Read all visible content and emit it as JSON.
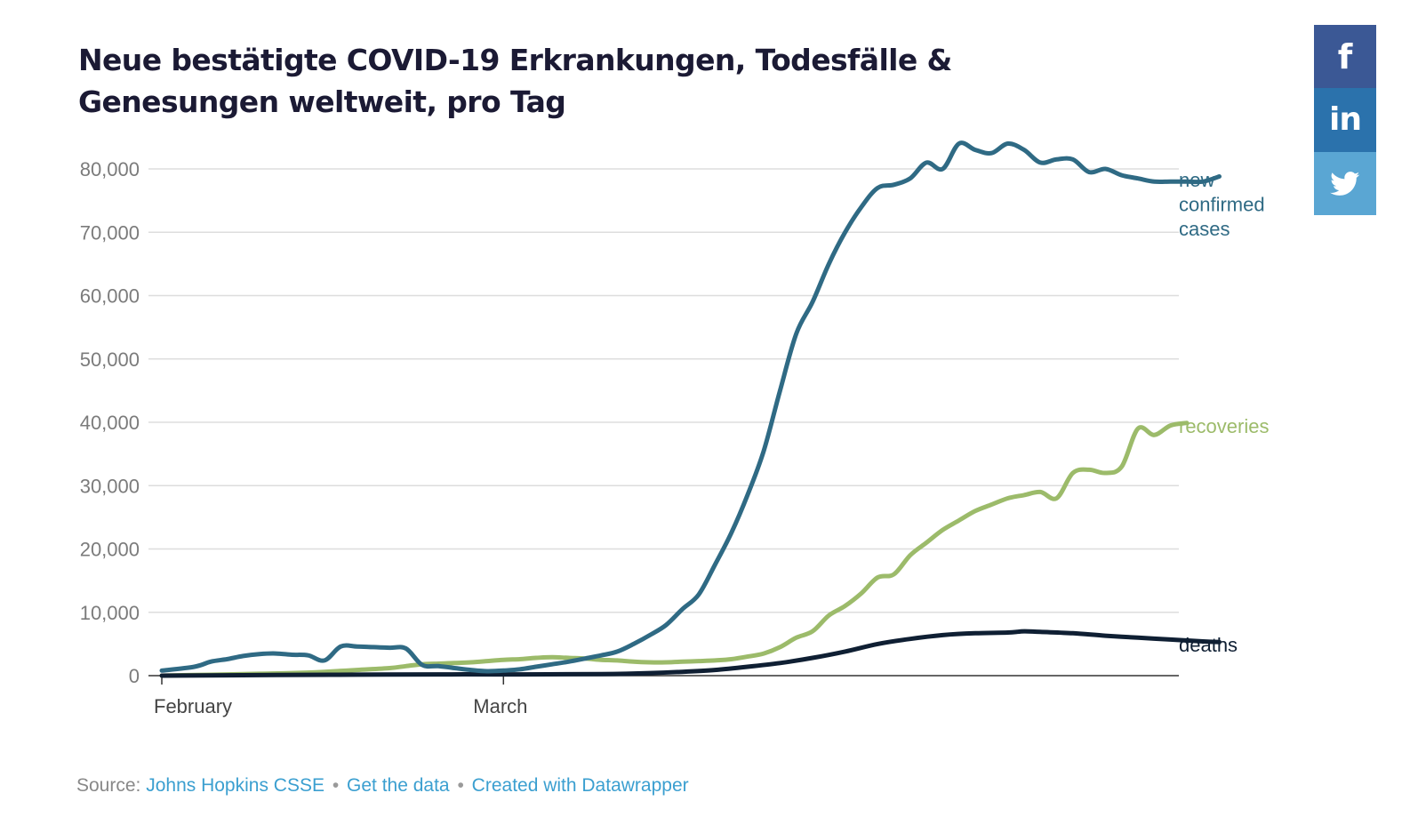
{
  "chart_data": {
    "type": "line",
    "title": "Neue bestätigte COVID-19 Erkrankungen, Todesfälle & Genesungen weltweit, pro Tag",
    "xlabel": "",
    "ylabel": "",
    "x_ticks": [
      "February",
      "March"
    ],
    "y_ticks": [
      "0",
      "10,000",
      "20,000",
      "30,000",
      "40,000",
      "50,000",
      "60,000",
      "70,000",
      "80,000"
    ],
    "ylim": [
      0,
      88000
    ],
    "grid": "horizontal",
    "legend": "direct labels at right end of lines",
    "series": [
      {
        "name": "new confirmed cases",
        "label_lines": [
          "new",
          "confirmed",
          "cases"
        ],
        "color": "#2f6a84",
        "points": [
          [
            -2,
            800
          ],
          [
            0,
            1400
          ],
          [
            1,
            2200
          ],
          [
            2,
            2600
          ],
          [
            3,
            3100
          ],
          [
            4,
            3400
          ],
          [
            5,
            3500
          ],
          [
            6,
            3300
          ],
          [
            7,
            3200
          ],
          [
            8,
            2400
          ],
          [
            9,
            4600
          ],
          [
            10,
            4600
          ],
          [
            11,
            4500
          ],
          [
            12,
            4400
          ],
          [
            13,
            4300
          ],
          [
            14,
            1700
          ],
          [
            15,
            1500
          ],
          [
            16,
            1200
          ],
          [
            17,
            900
          ],
          [
            18,
            700
          ],
          [
            19,
            800
          ],
          [
            20,
            1000
          ],
          [
            21,
            1400
          ],
          [
            22,
            1800
          ],
          [
            23,
            2200
          ],
          [
            24,
            2700
          ],
          [
            25,
            3200
          ],
          [
            26,
            3800
          ],
          [
            27,
            5000
          ],
          [
            28,
            6400
          ],
          [
            29,
            8000
          ],
          [
            30,
            10500
          ],
          [
            31,
            12800
          ],
          [
            32,
            17500
          ],
          [
            33,
            22500
          ],
          [
            34,
            28500
          ],
          [
            35,
            35500
          ],
          [
            36,
            45000
          ],
          [
            37,
            54000
          ],
          [
            38,
            59000
          ],
          [
            39,
            65000
          ],
          [
            40,
            70000
          ],
          [
            41,
            74000
          ],
          [
            42,
            77000
          ],
          [
            43,
            77500
          ],
          [
            44,
            78500
          ],
          [
            45,
            81000
          ],
          [
            46,
            80000
          ],
          [
            47,
            84000
          ],
          [
            48,
            83000
          ],
          [
            49,
            82500
          ],
          [
            50,
            84000
          ],
          [
            51,
            83000
          ],
          [
            52,
            81000
          ],
          [
            53,
            81500
          ],
          [
            54,
            81500
          ],
          [
            55,
            79500
          ],
          [
            56,
            80000
          ],
          [
            57,
            79000
          ],
          [
            58,
            78500
          ],
          [
            59,
            78000
          ],
          [
            60,
            78000
          ],
          [
            61,
            78000
          ],
          [
            62,
            78000
          ],
          [
            63,
            78800
          ]
        ]
      },
      {
        "name": "recoveries",
        "label_lines": [
          "recoveries"
        ],
        "color": "#9cbb6a",
        "points": [
          [
            -2,
            0
          ],
          [
            0,
            100
          ],
          [
            2,
            200
          ],
          [
            4,
            300
          ],
          [
            6,
            400
          ],
          [
            8,
            600
          ],
          [
            10,
            900
          ],
          [
            12,
            1200
          ],
          [
            13,
            1500
          ],
          [
            14,
            1800
          ],
          [
            15,
            1900
          ],
          [
            16,
            2000
          ],
          [
            17,
            2100
          ],
          [
            18,
            2300
          ],
          [
            19,
            2500
          ],
          [
            20,
            2600
          ],
          [
            21,
            2800
          ],
          [
            22,
            2900
          ],
          [
            23,
            2800
          ],
          [
            24,
            2700
          ],
          [
            25,
            2500
          ],
          [
            26,
            2400
          ],
          [
            27,
            2200
          ],
          [
            28,
            2100
          ],
          [
            29,
            2100
          ],
          [
            30,
            2200
          ],
          [
            31,
            2300
          ],
          [
            32,
            2400
          ],
          [
            33,
            2600
          ],
          [
            34,
            3000
          ],
          [
            35,
            3500
          ],
          [
            36,
            4500
          ],
          [
            37,
            6000
          ],
          [
            38,
            7000
          ],
          [
            39,
            9500
          ],
          [
            40,
            11000
          ],
          [
            41,
            13000
          ],
          [
            42,
            15500
          ],
          [
            43,
            16000
          ],
          [
            44,
            19000
          ],
          [
            45,
            21000
          ],
          [
            46,
            23000
          ],
          [
            47,
            24500
          ],
          [
            48,
            26000
          ],
          [
            49,
            27000
          ],
          [
            50,
            28000
          ],
          [
            51,
            28500
          ],
          [
            52,
            29000
          ],
          [
            53,
            28000
          ],
          [
            54,
            32000
          ],
          [
            55,
            32500
          ],
          [
            56,
            32000
          ],
          [
            57,
            33000
          ],
          [
            58,
            39000
          ],
          [
            59,
            38000
          ],
          [
            60,
            39500
          ],
          [
            61,
            39900
          ]
        ]
      },
      {
        "name": "deaths",
        "label_lines": [
          "deaths"
        ],
        "color": "#0f1f33",
        "points": [
          [
            -2,
            0
          ],
          [
            5,
            100
          ],
          [
            10,
            150
          ],
          [
            15,
            200
          ],
          [
            20,
            200
          ],
          [
            25,
            250
          ],
          [
            28,
            400
          ],
          [
            30,
            600
          ],
          [
            32,
            900
          ],
          [
            34,
            1400
          ],
          [
            36,
            2000
          ],
          [
            38,
            2800
          ],
          [
            40,
            3800
          ],
          [
            42,
            5000
          ],
          [
            44,
            5800
          ],
          [
            46,
            6400
          ],
          [
            48,
            6700
          ],
          [
            50,
            6800
          ],
          [
            51,
            7000
          ],
          [
            52,
            6900
          ],
          [
            54,
            6700
          ],
          [
            56,
            6300
          ],
          [
            58,
            6000
          ],
          [
            60,
            5700
          ],
          [
            62,
            5400
          ],
          [
            63,
            5300
          ]
        ]
      }
    ]
  },
  "footer": {
    "source_label": "Source:",
    "source_link": "Johns Hopkins CSSE",
    "separator": "•",
    "data_link": "Get the data",
    "created_link": "Created with Datawrapper"
  },
  "social": {
    "facebook_icon": "f",
    "linkedin_icon": "in",
    "twitter_icon": "twitter-bird-icon"
  }
}
